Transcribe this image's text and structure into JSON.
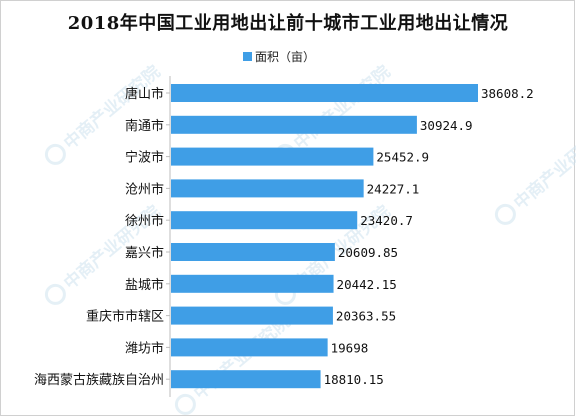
{
  "chart_data": {
    "type": "bar",
    "orientation": "horizontal",
    "title": "2018年中国工业用地出让前十城市工业用地出让情况",
    "legend": {
      "position": "top",
      "entries": [
        "面积（亩）"
      ]
    },
    "categories": [
      "唐山市",
      "南通市",
      "宁波市",
      "沧州市",
      "徐州市",
      "嘉兴市",
      "盐城市",
      "重庆市市辖区",
      "潍坊市",
      "海西蒙古族藏族自治州"
    ],
    "series": [
      {
        "name": "面积（亩）",
        "values": [
          38608.2,
          30924.9,
          25452.9,
          24227.1,
          23420.7,
          20609.85,
          20442.15,
          20363.55,
          19698,
          18810.15
        ],
        "value_labels": [
          "38608.2",
          "30924.9",
          "25452.9",
          "24227.1",
          "23420.7",
          "20609.85",
          "20442.15",
          "20363.55",
          "19698",
          "18810.15"
        ]
      }
    ],
    "bar_color": "#3f9ee6",
    "grid": false,
    "axis_line": "left"
  },
  "watermark": {
    "text": "中商产业研究院"
  }
}
